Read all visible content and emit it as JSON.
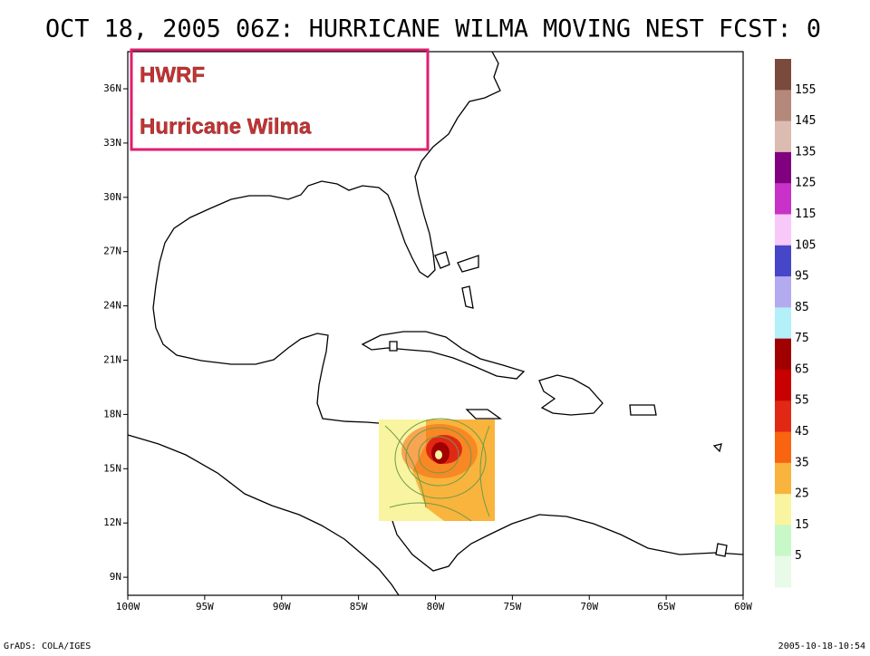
{
  "title": "OCT 18, 2005 06Z: HURRICANE WILMA MOVING NEST FCST: 0",
  "overlay": {
    "model": "HWRF",
    "storm": "Hurricane Wilma"
  },
  "lat_labels": [
    "36N",
    "33N",
    "30N",
    "27N",
    "24N",
    "21N",
    "18N",
    "15N",
    "12N",
    "9N"
  ],
  "lon_labels": [
    "100W",
    "95W",
    "90W",
    "85W",
    "80W",
    "75W",
    "70W",
    "65W",
    "60W"
  ],
  "colorbar": {
    "labels": [
      "155",
      "145",
      "135",
      "125",
      "115",
      "105",
      "95",
      "85",
      "75",
      "65",
      "55",
      "45",
      "35",
      "25",
      "15",
      "5"
    ],
    "colors": [
      "#7a4a3c",
      "#b4887a",
      "#dcbcb0",
      "#800080",
      "#c832c8",
      "#f8c8f8",
      "#4646c8",
      "#b4aaf0",
      "#b4f0f8",
      "#a00000",
      "#c80000",
      "#e02814",
      "#f86410",
      "#f8b43c",
      "#f8f4a0",
      "#c8f8c8",
      "#e8fae8"
    ]
  },
  "footer": {
    "left": "GrADS: COLA/IGES",
    "right": "2005-10-18-10:54"
  }
}
